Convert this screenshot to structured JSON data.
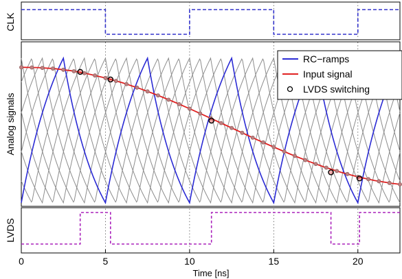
{
  "chart_data": {
    "type": "line",
    "xlabel": "Time [ns]",
    "xlim": [
      0,
      22.5
    ],
    "xticks": [
      "0",
      "5",
      "10",
      "15",
      "20"
    ],
    "xtick_values": [
      0,
      5,
      10,
      15,
      20
    ],
    "grid": "dotted vertical at 5, 10, 15, 20",
    "panels": [
      {
        "name": "clk",
        "ylabel": "CLK"
      },
      {
        "name": "analog",
        "ylabel": "Analog signals"
      },
      {
        "name": "lvds",
        "ylabel": "LVDS"
      }
    ],
    "legend": {
      "placement": "top-right",
      "entries": [
        "RC−ramps",
        "Input signal",
        "LVDS switching"
      ]
    },
    "colors": {
      "clk": "#3333cc",
      "ramps_highlight": "#2a2ad4",
      "ramps_other": "#8c8c8c",
      "input_signal": "#e02020",
      "lvds": "#aa22bb",
      "markers": "#000000",
      "sample_markers": "#c08080"
    },
    "series": [
      {
        "name": "CLK",
        "kind": "digital",
        "x": [
          0,
          5,
          5,
          10,
          10,
          15,
          15,
          20,
          20,
          22.5
        ],
        "y": [
          1,
          1,
          0,
          0,
          1,
          1,
          0,
          0,
          1,
          1
        ]
      },
      {
        "name": "LVDS",
        "kind": "digital",
        "x": [
          0,
          3.5,
          3.5,
          5.3,
          5.3,
          11.3,
          11.3,
          18.4,
          18.4,
          20.1,
          20.1,
          22.5
        ],
        "y": [
          0,
          0,
          1,
          1,
          0,
          0,
          1,
          1,
          0,
          0,
          1,
          1
        ]
      },
      {
        "name": "Input signal",
        "kind": "analog",
        "x": [
          0,
          1,
          2,
          3,
          4,
          5,
          6,
          7,
          8,
          9,
          10,
          11,
          12,
          13,
          14,
          15,
          16,
          17,
          18,
          19,
          20,
          21,
          22,
          22.5
        ],
        "y": [
          0.9,
          0.898,
          0.891,
          0.877,
          0.856,
          0.83,
          0.799,
          0.762,
          0.721,
          0.676,
          0.628,
          0.578,
          0.527,
          0.476,
          0.425,
          0.376,
          0.329,
          0.285,
          0.245,
          0.21,
          0.18,
          0.156,
          0.138,
          0.131
        ]
      },
      {
        "name": "RC−ramps",
        "kind": "ramps",
        "period_ns": 5,
        "offsets_ns": [
          0,
          0.625,
          1.25,
          1.875,
          2.5,
          3.125,
          3.75,
          4.375
        ],
        "highlighted_offset_ns": 0,
        "low": 0.01,
        "high": 0.96,
        "tau_rise_ns": 2.5,
        "tau_fall_ns": 2.1
      },
      {
        "name": "LVDS switching",
        "kind": "markers",
        "x": [
          3.5,
          5.3,
          11.3,
          18.4,
          20.1
        ],
        "y": [
          0.87,
          0.82,
          0.55,
          0.21,
          0.17
        ]
      }
    ]
  }
}
